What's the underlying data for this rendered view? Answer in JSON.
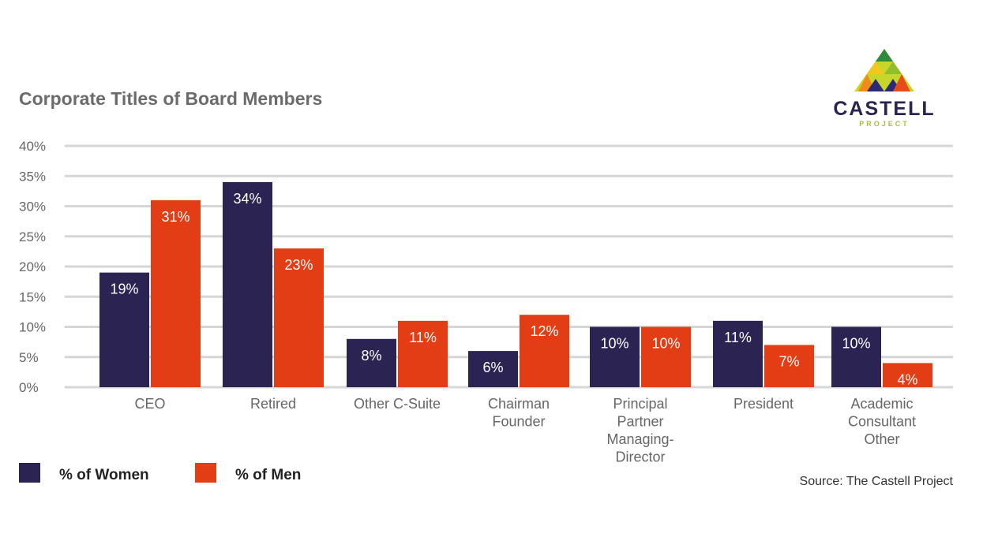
{
  "chart_data": {
    "type": "bar",
    "title": "Corporate Titles of Board Members",
    "categories": [
      [
        "CEO"
      ],
      [
        "Retired"
      ],
      [
        "Other C-Suite"
      ],
      [
        "Chairman",
        "Founder"
      ],
      [
        "Principal",
        "Partner",
        "Managing-",
        "Director"
      ],
      [
        "President"
      ],
      [
        "Academic",
        "Consultant",
        "Other"
      ]
    ],
    "series": [
      {
        "name": "% of Women",
        "color": "#2b2452",
        "values": [
          19,
          34,
          8,
          6,
          10,
          11,
          10
        ]
      },
      {
        "name": "% of Men",
        "color": "#e23d14",
        "values": [
          31,
          23,
          11,
          12,
          10,
          7,
          4
        ]
      }
    ],
    "ylim": [
      0,
      40
    ],
    "yticks": [
      0,
      5,
      10,
      15,
      20,
      25,
      30,
      35,
      40
    ],
    "ytick_format": "{v}%",
    "grid": true,
    "legend_position": "bottom-left",
    "source": "Source: The Castell Project"
  },
  "logo": {
    "name": "CASTELL",
    "sub": "PROJECT"
  }
}
